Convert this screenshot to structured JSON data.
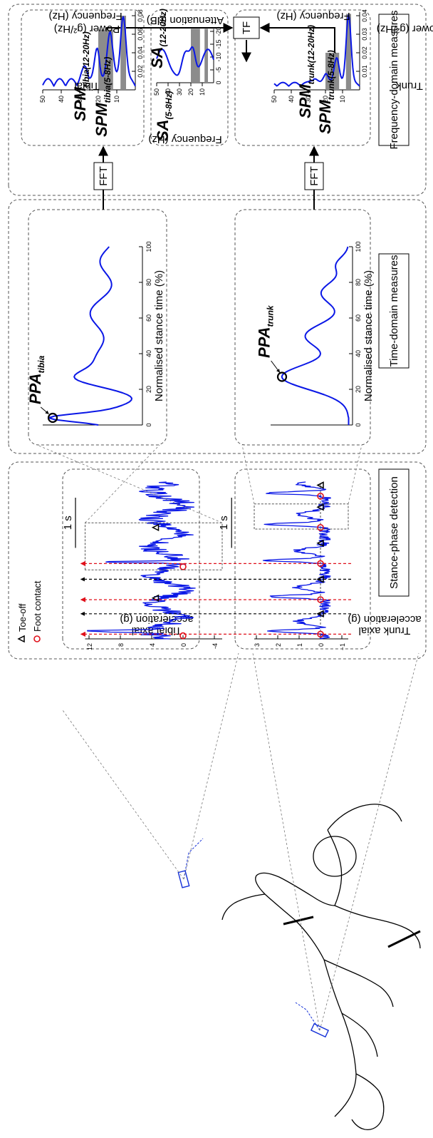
{
  "sections": {
    "stance": "Stance-phase detection",
    "time": "Time-domain measures",
    "freq": "Frequency-domain measures"
  },
  "blocks": {
    "fft1": "FFT",
    "fft2": "FFT",
    "tf": "TF"
  },
  "trunk_acc": {
    "ylabel1": "Trunk axial",
    "ylabel2": "acceleration (g)",
    "yticks": [
      "3",
      "2",
      "1",
      "0",
      "−1"
    ],
    "scale": "1 s"
  },
  "tibial_acc": {
    "ylabel1": "Tibial axial",
    "ylabel2": "acceleration (g)",
    "yticks": [
      "12",
      "8",
      "4",
      "0",
      "-4"
    ],
    "scale": "1 s"
  },
  "legend": {
    "foot_contact": "Foot contact",
    "toe_off": "Toe-off"
  },
  "ppa_trunk": {
    "label": "PPA",
    "sub": "trunk",
    "xlabel": "Normalised stance time (%)",
    "xticks": [
      "0",
      "20",
      "40",
      "60",
      "80",
      "100"
    ]
  },
  "ppa_tibia": {
    "label": "PPA",
    "sub": "tibia",
    "xlabel": "Normalised stance time (%)",
    "xticks": [
      "0",
      "20",
      "40",
      "60",
      "80",
      "100"
    ]
  },
  "trunk_psd": {
    "ylabel1": "Trunk",
    "ylabel2": "Power (g²/Hz)",
    "xlabel": "Frequency (Hz)",
    "yticks": [
      "0.04",
      "0.03",
      "0.02",
      "0.01"
    ],
    "xticks": [
      "10",
      "20",
      "30",
      "40",
      "50"
    ],
    "ann1": "SPM",
    "ann1_sub": "trunk(5-8Hz)",
    "ann2": "SPM",
    "ann2_sub": "trunk(12-20Hz)"
  },
  "attenuation": {
    "ylabel": "Attenuation (dB)",
    "xlabel": "Frequency (Hz)",
    "yticks": [
      "0",
      "-5",
      "-10",
      "-15",
      "-20"
    ],
    "xticks": [
      "10",
      "20",
      "30",
      "40",
      "50"
    ],
    "ann1": "SA",
    "ann1_sub": "(12-20Hz)",
    "ann2": "SA",
    "ann2_sub": "(5-8Hz)"
  },
  "tibial_psd": {
    "ylabel1": "Tibial",
    "ylabel2": "Power (g²/Hz)",
    "xlabel": "Frequency (Hz)",
    "yticks": [
      "0.08",
      "0.06",
      "0.04",
      "0.02"
    ],
    "xticks": [
      "10",
      "20",
      "30",
      "40",
      "50"
    ],
    "ann1": "SPM",
    "ann1_sub": "tibia(5-8Hz)",
    "ann2": "SPM",
    "ann2_sub": "tibia(12-20Hz)"
  },
  "colors": {
    "curve": "#0a17e6",
    "foot_contact": "#e0101a",
    "shade": "#8c8c8c"
  }
}
